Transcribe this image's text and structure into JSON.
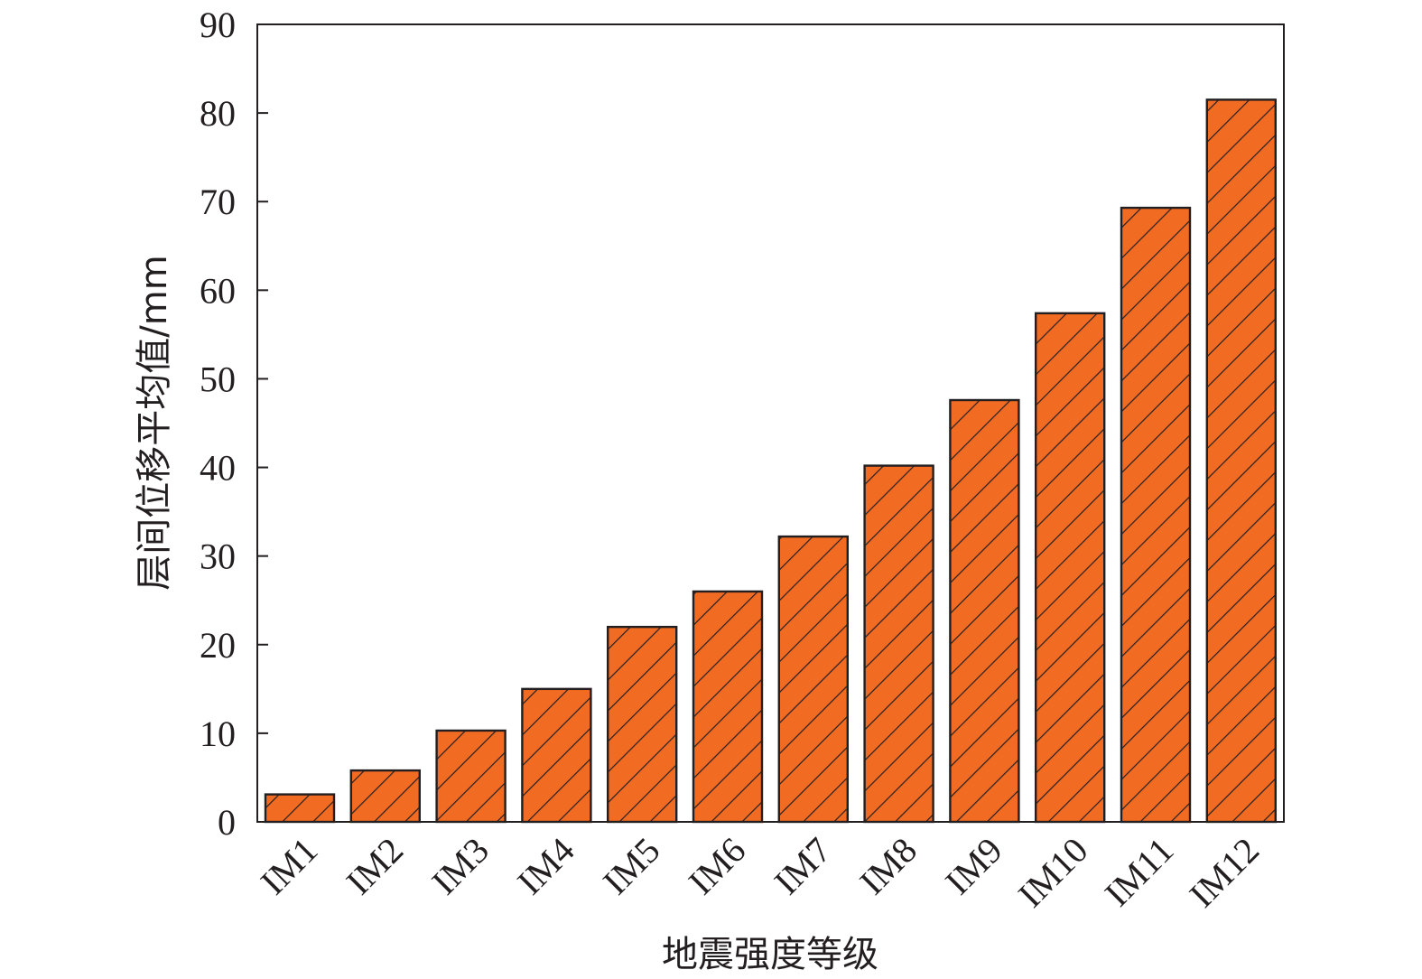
{
  "chart_data": {
    "type": "bar",
    "title": "",
    "xlabel": "地震强度等级",
    "ylabel": "层间位移平均值/mm",
    "categories": [
      "IM1",
      "IM2",
      "IM3",
      "IM4",
      "IM5",
      "IM6",
      "IM7",
      "IM8",
      "IM9",
      "IM10",
      "IM11",
      "IM12"
    ],
    "values": [
      3.1,
      5.8,
      10.3,
      15.0,
      22.0,
      26.0,
      32.2,
      40.2,
      47.6,
      57.4,
      69.3,
      81.5
    ],
    "ylim": [
      0,
      90
    ],
    "yticks": [
      "0",
      "10",
      "20",
      "30",
      "40",
      "50",
      "60",
      "70",
      "80",
      "90"
    ],
    "grid": false,
    "legend": "none",
    "colors": {
      "bar_fill": "#f26b22",
      "bar_stroke": "#231f20",
      "hatch": "#231f20",
      "axis": "#231f20"
    }
  }
}
